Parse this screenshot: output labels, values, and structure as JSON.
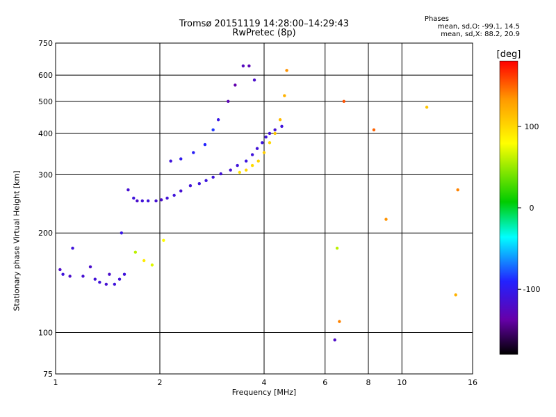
{
  "chart_data": {
    "type": "scatter",
    "title": "Tromsø 20151119 14:28:00–14:29:43",
    "subtitle": "RwPretec (8p)",
    "stats_header": "Phases",
    "stats_line1": "mean, sd,O: -99.1, 14.5",
    "stats_line2": "mean, sd,X: 88.2, 20.9",
    "xlabel": "Frequency [MHz]",
    "ylabel": "Stationary phase Virtual Height [km]",
    "x_scale": "log",
    "y_scale": "log",
    "xlim": [
      1,
      16
    ],
    "ylim": [
      75,
      750
    ],
    "xticks": [
      1,
      2,
      4,
      6,
      8,
      10,
      16
    ],
    "x_gridlines": [
      2,
      4,
      6,
      8,
      10
    ],
    "yticks": [
      75,
      100,
      200,
      300,
      400,
      500,
      600,
      750
    ],
    "y_gridlines": [
      100,
      200,
      300,
      400,
      500,
      600
    ],
    "grid": true,
    "colorbar": {
      "label": "[deg]",
      "range": [
        -180,
        180
      ],
      "ticks": [
        100,
        0,
        -100
      ],
      "colormap": [
        "#000000",
        "#6600aa",
        "#2222ff",
        "#00ffff",
        "#00cc00",
        "#ffff00",
        "#ff9900",
        "#ff0000"
      ]
    },
    "series": [
      {
        "x": [
          1.03,
          1.05,
          1.1,
          1.12,
          1.2,
          1.26,
          1.3,
          1.34,
          1.4,
          1.43,
          1.48,
          1.53,
          1.55,
          1.58,
          1.62,
          1.68,
          1.72,
          1.78,
          1.85,
          1.95,
          2.02,
          2.1,
          2.2,
          2.3,
          2.45,
          2.6,
          2.72,
          2.85,
          3.0,
          3.2,
          3.35,
          3.55,
          3.7,
          3.82,
          3.95,
          4.05,
          4.15,
          4.3,
          4.5
        ],
        "y": [
          155,
          150,
          148,
          180,
          148,
          158,
          145,
          142,
          140,
          150,
          140,
          145,
          200,
          150,
          270,
          255,
          250,
          250,
          250,
          250,
          252,
          255,
          260,
          268,
          278,
          282,
          288,
          295,
          302,
          310,
          320,
          330,
          345,
          360,
          375,
          390,
          400,
          410,
          420
        ],
        "phase": [
          -120,
          -110,
          -118,
          -110,
          -115,
          -118,
          -112,
          -110,
          -115,
          -118,
          -110,
          -112,
          -105,
          -110,
          -115,
          -110,
          -118,
          -112,
          -110,
          -115,
          -118,
          -112,
          -110,
          -115,
          -112,
          -110,
          -108,
          -110,
          -112,
          -115,
          -110,
          -108,
          -110,
          -112,
          -108,
          -110,
          -112,
          -115,
          -110
        ]
      },
      {
        "x": [
          2.15,
          2.3,
          2.5,
          2.7,
          2.85,
          2.95,
          3.15,
          3.3,
          3.48,
          3.62,
          3.75
        ],
        "y": [
          330,
          335,
          350,
          370,
          410,
          440,
          500,
          560,
          640,
          640,
          580
        ],
        "phase": [
          -110,
          -100,
          -95,
          -90,
          -85,
          -105,
          -130,
          -135,
          -125,
          -130,
          -118
        ]
      },
      {
        "x": [
          3.4,
          3.55,
          3.7,
          3.85,
          4.0,
          4.15,
          4.3,
          4.45,
          4.58,
          4.65
        ],
        "y": [
          305,
          310,
          320,
          330,
          350,
          375,
          400,
          440,
          520,
          620
        ],
        "phase": [
          95,
          100,
          98,
          102,
          105,
          100,
          110,
          115,
          120,
          135
        ]
      },
      {
        "x": [
          1.7,
          1.8,
          1.9,
          2.05,
          6.4,
          6.6,
          6.8,
          6.5,
          8.3,
          9.0,
          11.8,
          14.5,
          14.3
        ],
        "y": [
          175,
          165,
          160,
          190,
          95,
          108,
          500,
          180,
          410,
          220,
          480,
          270,
          130
        ],
        "phase": [
          60,
          90,
          70,
          80,
          -120,
          140,
          155,
          60,
          150,
          135,
          110,
          140,
          120
        ]
      }
    ]
  }
}
